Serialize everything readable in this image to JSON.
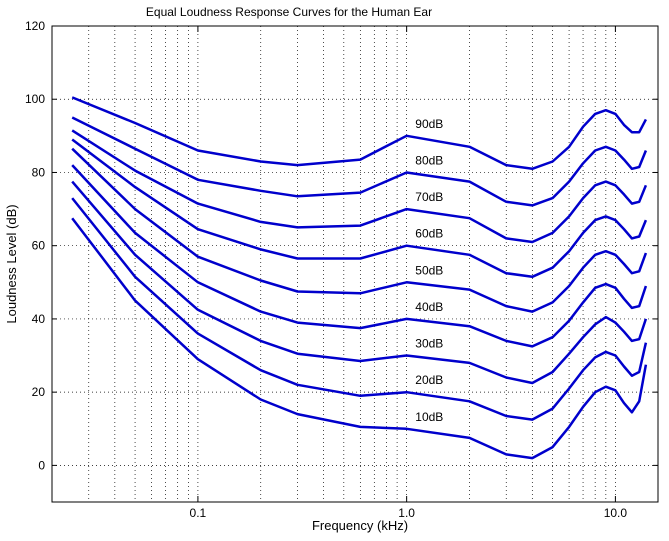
{
  "chart_data": {
    "type": "line",
    "title": "Equal Loudness Response Curves for the Human Ear",
    "xlabel": "Frequency (kHz)",
    "ylabel": "Loudness Level (dB)",
    "xscale": "log",
    "xlim": [
      0.02,
      16
    ],
    "ylim": [
      -10,
      120
    ],
    "xticks": [
      0.1,
      1.0,
      10.0
    ],
    "xtick_labels": [
      "0.1",
      "1.0",
      "10.0"
    ],
    "yticks": [
      0,
      20,
      40,
      60,
      80,
      100,
      120
    ],
    "ytick_labels": [
      "0",
      "20",
      "40",
      "60",
      "80",
      "100",
      "120"
    ],
    "grid": true,
    "line_color": "#0000cc",
    "x": [
      0.025,
      0.05,
      0.1,
      0.2,
      0.3,
      0.6,
      1.0,
      2.0,
      3.0,
      4.0,
      5.0,
      6.0,
      7.0,
      8.0,
      9.0,
      10.0,
      11.0,
      12.0,
      13.0,
      14.0
    ],
    "series": [
      {
        "name": "10dB",
        "label_x": 1.1,
        "values": [
          67.5,
          45.0,
          29.0,
          18.0,
          14.0,
          10.5,
          10.0,
          7.5,
          3.0,
          2.0,
          5.0,
          10.5,
          16.0,
          20.0,
          21.5,
          20.5,
          17.0,
          14.5,
          17.5,
          27.5
        ]
      },
      {
        "name": "20dB",
        "label_x": 1.1,
        "values": [
          73.0,
          51.5,
          36.0,
          26.0,
          22.0,
          19.0,
          20.0,
          17.5,
          13.5,
          12.5,
          15.5,
          21.0,
          26.0,
          29.5,
          31.0,
          30.0,
          27.0,
          24.5,
          25.5,
          33.5
        ]
      },
      {
        "name": "30dB",
        "label_x": 1.1,
        "values": [
          77.5,
          57.5,
          42.5,
          34.0,
          30.5,
          28.5,
          30.0,
          28.0,
          24.0,
          22.5,
          25.5,
          30.5,
          35.0,
          38.5,
          40.5,
          39.0,
          36.5,
          34.0,
          34.5,
          40.0
        ]
      },
      {
        "name": "40dB",
        "label_x": 1.1,
        "values": [
          82.0,
          63.5,
          50.0,
          42.0,
          39.0,
          37.5,
          40.0,
          38.0,
          34.0,
          32.5,
          35.0,
          39.5,
          44.5,
          48.5,
          49.5,
          48.5,
          45.5,
          43.0,
          43.5,
          49.0
        ]
      },
      {
        "name": "50dB",
        "label_x": 1.1,
        "values": [
          86.5,
          70.0,
          57.0,
          50.5,
          47.5,
          47.0,
          50.0,
          48.0,
          43.5,
          42.0,
          44.5,
          49.0,
          54.0,
          57.5,
          58.5,
          57.5,
          55.0,
          52.5,
          53.0,
          58.0
        ]
      },
      {
        "name": "60dB",
        "label_x": 1.1,
        "values": [
          89.0,
          76.0,
          64.5,
          59.0,
          56.5,
          56.5,
          60.0,
          57.5,
          52.5,
          51.5,
          54.0,
          58.5,
          63.5,
          67.0,
          68.0,
          67.0,
          64.5,
          62.0,
          62.5,
          67.0
        ]
      },
      {
        "name": "70dB",
        "label_x": 1.1,
        "values": [
          91.5,
          80.5,
          71.5,
          66.5,
          65.0,
          65.5,
          70.0,
          67.5,
          62.0,
          61.0,
          63.5,
          68.0,
          73.0,
          76.5,
          77.5,
          76.5,
          74.0,
          71.5,
          72.0,
          76.5
        ]
      },
      {
        "name": "80dB",
        "label_x": 1.1,
        "values": [
          95.0,
          86.5,
          78.0,
          75.0,
          73.5,
          74.5,
          80.0,
          77.5,
          72.0,
          71.0,
          73.0,
          77.5,
          82.5,
          86.0,
          87.0,
          86.0,
          83.5,
          81.0,
          81.5,
          86.0
        ]
      },
      {
        "name": "90dB",
        "label_x": 1.1,
        "values": [
          100.5,
          93.5,
          86.0,
          83.0,
          82.0,
          83.5,
          90.0,
          87.0,
          82.0,
          81.0,
          83.0,
          87.0,
          92.5,
          96.0,
          97.0,
          96.0,
          93.0,
          91.0,
          91.0,
          94.5
        ]
      }
    ]
  }
}
